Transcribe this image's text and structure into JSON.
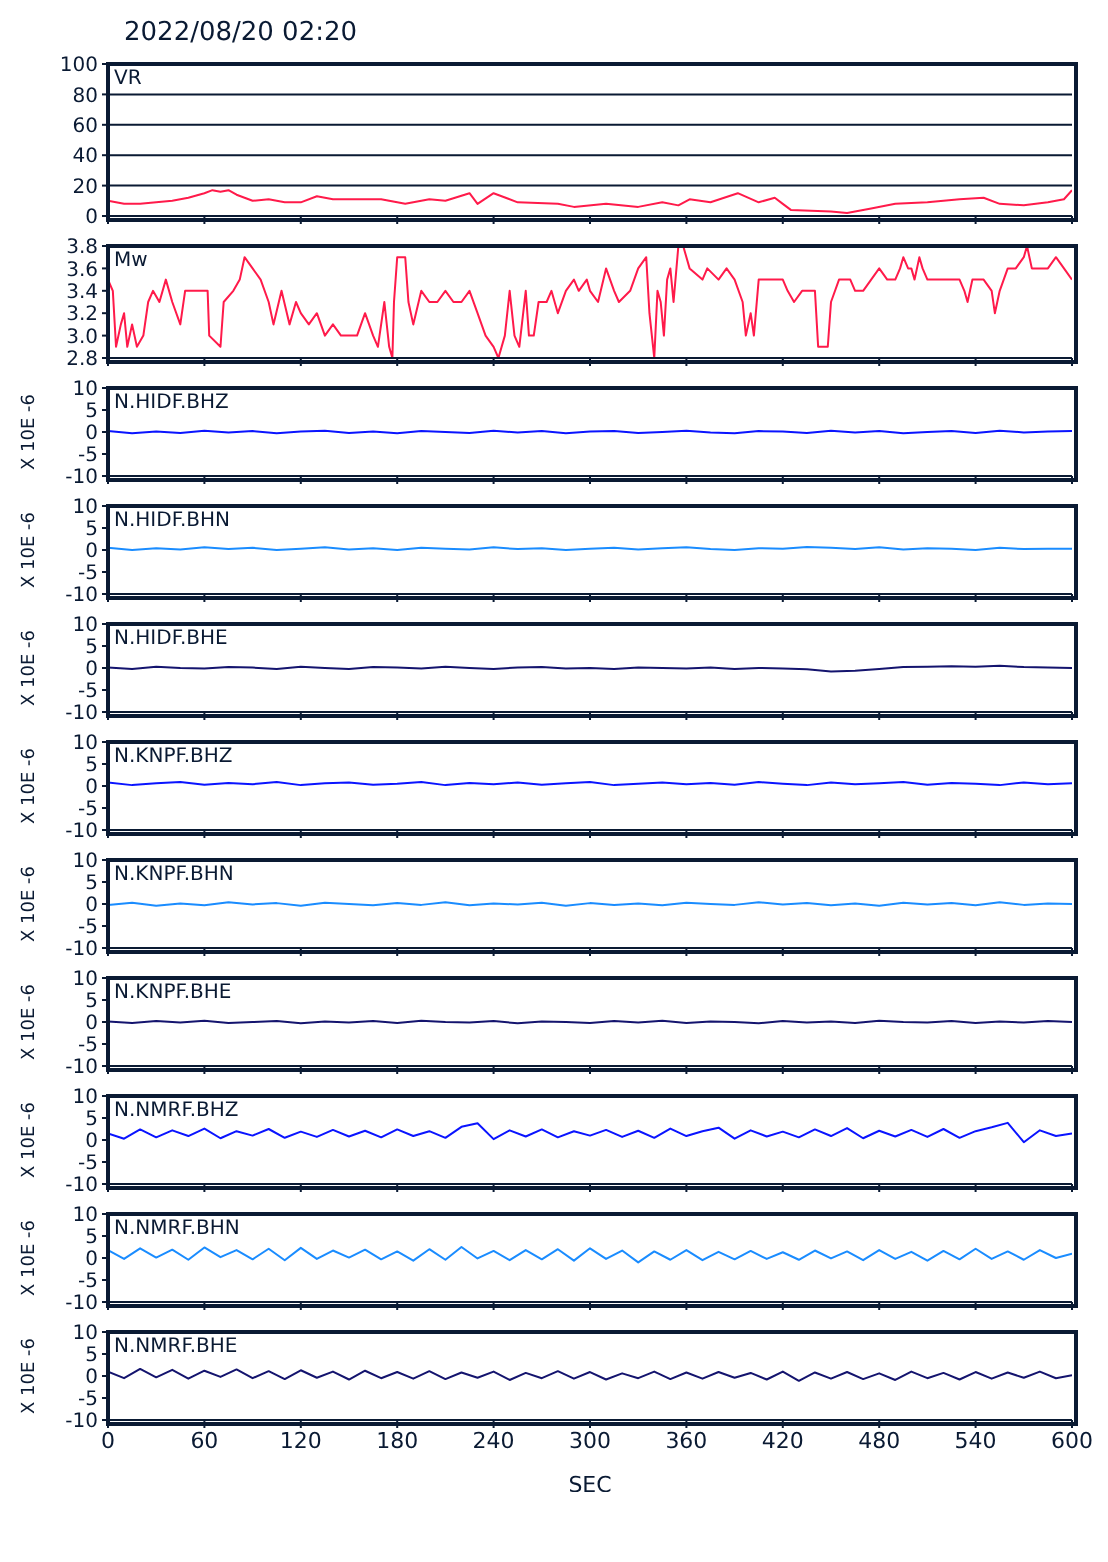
{
  "chart_data": [
    {
      "type": "line",
      "title": "2022/08/20 02:20",
      "xlim": [
        0,
        600
      ],
      "xticks": [
        0,
        60,
        120,
        180,
        240,
        300,
        360,
        420,
        480,
        540,
        600
      ],
      "ylim": [
        0,
        100
      ],
      "yticks": [
        0,
        20,
        40,
        60,
        80,
        100
      ],
      "grid": "y",
      "tick_labels": "y",
      "series": [
        {
          "name": "VR",
          "color": "#ff1a4a",
          "x": [
            0,
            5,
            10,
            20,
            30,
            40,
            50,
            60,
            65,
            70,
            75,
            80,
            90,
            100,
            110,
            120,
            130,
            140,
            150,
            170,
            180,
            185,
            200,
            210,
            225,
            230,
            240,
            255,
            280,
            290,
            310,
            330,
            345,
            355,
            362,
            375,
            392,
            405,
            415,
            420,
            425,
            450,
            460,
            475,
            490,
            510,
            530,
            545,
            555,
            570,
            585,
            595,
            600
          ],
          "values": [
            10,
            9,
            8,
            8,
            9,
            10,
            12,
            15,
            17,
            16,
            17,
            14,
            10,
            11,
            9,
            9,
            13,
            11,
            11,
            11,
            9,
            8,
            11,
            10,
            15,
            8,
            15,
            9,
            8,
            6,
            8,
            6,
            9,
            7,
            11,
            9,
            15,
            9,
            12,
            8,
            4,
            3,
            2,
            5,
            8,
            9,
            11,
            12,
            8,
            7,
            9,
            11,
            17
          ]
        }
      ]
    },
    {
      "type": "line",
      "xlim": [
        0,
        600
      ],
      "xticks": [
        0,
        60,
        120,
        180,
        240,
        300,
        360,
        420,
        480,
        540,
        600
      ],
      "ylim": [
        2.8,
        3.8
      ],
      "yticks": [
        2.8,
        {
          "value": 3,
          "label": "3.0"
        },
        3.2,
        3.4,
        3.6,
        3.8
      ],
      "tick_labels": "y",
      "series": [
        {
          "name": "Mw",
          "color": "#ff1a4a",
          "x": [
            0,
            3,
            5,
            8,
            10,
            12,
            15,
            18,
            22,
            25,
            28,
            32,
            36,
            40,
            45,
            48,
            62,
            63,
            70,
            72,
            78,
            82,
            85,
            90,
            95,
            100,
            103,
            108,
            113,
            117,
            120,
            125,
            130,
            135,
            140,
            145,
            155,
            160,
            165,
            168,
            172,
            175,
            177,
            178,
            180,
            185,
            187,
            190,
            195,
            200,
            205,
            210,
            215,
            220,
            225,
            230,
            235,
            240,
            243,
            247,
            250,
            253,
            256,
            260,
            262,
            265,
            268,
            273,
            276,
            280,
            285,
            290,
            293,
            298,
            300,
            305,
            310,
            315,
            318,
            325,
            330,
            335,
            337,
            340,
            342,
            344,
            346,
            348,
            350,
            352,
            355,
            358,
            362,
            370,
            373,
            380,
            385,
            390,
            395,
            397,
            400,
            402,
            405,
            420,
            423,
            427,
            432,
            440,
            442,
            448,
            450,
            455,
            462,
            465,
            470,
            475,
            480,
            485,
            490,
            493,
            495,
            498,
            500,
            502,
            505,
            507,
            510,
            530,
            533,
            535,
            538,
            545,
            550,
            552,
            555,
            560,
            565,
            570,
            572,
            575,
            580,
            585,
            590,
            595,
            600
          ],
          "values": [
            3.5,
            3.4,
            2.9,
            3.1,
            3.2,
            2.9,
            3.1,
            2.9,
            3.0,
            3.3,
            3.4,
            3.3,
            3.5,
            3.3,
            3.1,
            3.4,
            3.4,
            3.0,
            2.9,
            3.3,
            3.4,
            3.5,
            3.7,
            3.6,
            3.5,
            3.3,
            3.1,
            3.4,
            3.1,
            3.3,
            3.2,
            3.1,
            3.2,
            3.0,
            3.1,
            3.0,
            3.0,
            3.2,
            3.0,
            2.9,
            3.3,
            2.9,
            2.8,
            3.3,
            3.7,
            3.7,
            3.3,
            3.1,
            3.4,
            3.3,
            3.3,
            3.4,
            3.3,
            3.3,
            3.4,
            3.2,
            3.0,
            2.9,
            2.8,
            3.0,
            3.4,
            3.0,
            2.9,
            3.4,
            3.0,
            3.0,
            3.3,
            3.3,
            3.4,
            3.2,
            3.4,
            3.5,
            3.4,
            3.5,
            3.4,
            3.3,
            3.6,
            3.4,
            3.3,
            3.4,
            3.6,
            3.7,
            3.2,
            2.8,
            3.4,
            3.3,
            3.0,
            3.5,
            3.6,
            3.3,
            3.8,
            3.8,
            3.6,
            3.5,
            3.6,
            3.5,
            3.6,
            3.5,
            3.3,
            3.0,
            3.2,
            3.0,
            3.5,
            3.5,
            3.4,
            3.3,
            3.4,
            3.4,
            2.9,
            2.9,
            3.3,
            3.5,
            3.5,
            3.4,
            3.4,
            3.5,
            3.6,
            3.5,
            3.5,
            3.6,
            3.7,
            3.6,
            3.6,
            3.5,
            3.7,
            3.6,
            3.5,
            3.5,
            3.4,
            3.3,
            3.5,
            3.5,
            3.4,
            3.2,
            3.4,
            3.6,
            3.6,
            3.7,
            3.8,
            3.6,
            3.6,
            3.6,
            3.7,
            3.6,
            3.5
          ]
        }
      ]
    },
    {
      "type": "line",
      "ylabel": "X 10E -6",
      "xlim": [
        0,
        600
      ],
      "xticks": [
        0,
        60,
        120,
        180,
        240,
        300,
        360,
        420,
        480,
        540,
        600
      ],
      "ylim": [
        -10,
        10
      ],
      "yticks": [
        -10,
        -5,
        0,
        5,
        10
      ],
      "tick_labels": "y",
      "series": [
        {
          "name": "N.HIDF.BHZ",
          "color": "#0a14ff",
          "x": [
            0,
            15,
            30,
            45,
            60,
            75,
            90,
            105,
            120,
            135,
            150,
            165,
            180,
            195,
            210,
            225,
            240,
            255,
            270,
            285,
            300,
            315,
            330,
            345,
            360,
            375,
            390,
            405,
            420,
            435,
            450,
            465,
            480,
            495,
            510,
            525,
            540,
            555,
            570,
            585,
            600
          ],
          "values": [
            0.2,
            -0.3,
            0.1,
            -0.2,
            0.3,
            -0.1,
            0.2,
            -0.3,
            0.1,
            0.3,
            -0.2,
            0.1,
            -0.3,
            0.2,
            0,
            -0.2,
            0.3,
            -0.1,
            0.2,
            -0.3,
            0.1,
            0.2,
            -0.2,
            0,
            0.3,
            -0.1,
            -0.3,
            0.2,
            0.1,
            -0.2,
            0.3,
            -0.1,
            0.2,
            -0.3,
            0,
            0.2,
            -0.2,
            0.3,
            -0.1,
            0.1,
            0.2
          ]
        }
      ]
    },
    {
      "type": "line",
      "ylabel": "X 10E -6",
      "xlim": [
        0,
        600
      ],
      "xticks": [
        0,
        60,
        120,
        180,
        240,
        300,
        360,
        420,
        480,
        540,
        600
      ],
      "ylim": [
        -10,
        10
      ],
      "yticks": [
        -10,
        -5,
        0,
        5,
        10
      ],
      "tick_labels": "y",
      "series": [
        {
          "name": "N.HIDF.BHN",
          "color": "#1a8cff",
          "x": [
            0,
            15,
            30,
            45,
            60,
            75,
            90,
            105,
            120,
            135,
            150,
            165,
            180,
            195,
            210,
            225,
            240,
            255,
            270,
            285,
            300,
            315,
            330,
            345,
            360,
            375,
            390,
            405,
            420,
            435,
            450,
            465,
            480,
            495,
            510,
            525,
            540,
            555,
            570,
            585,
            600
          ],
          "values": [
            0.5,
            0,
            0.4,
            0.1,
            0.6,
            0.2,
            0.5,
            0,
            0.3,
            0.6,
            0.1,
            0.4,
            0,
            0.5,
            0.3,
            0.1,
            0.6,
            0.2,
            0.4,
            0,
            0.3,
            0.5,
            0.1,
            0.4,
            0.6,
            0.2,
            0,
            0.4,
            0.3,
            0.7,
            0.5,
            0.2,
            0.6,
            0.1,
            0.4,
            0.3,
            0,
            0.5,
            0.2,
            0.3,
            0.3
          ]
        }
      ]
    },
    {
      "type": "line",
      "ylabel": "X 10E -6",
      "xlim": [
        0,
        600
      ],
      "xticks": [
        0,
        60,
        120,
        180,
        240,
        300,
        360,
        420,
        480,
        540,
        600
      ],
      "ylim": [
        -10,
        10
      ],
      "yticks": [
        -10,
        -5,
        0,
        5,
        10
      ],
      "tick_labels": "y",
      "series": [
        {
          "name": "N.HIDF.BHE",
          "color": "#14146e",
          "x": [
            0,
            15,
            30,
            45,
            60,
            75,
            90,
            105,
            120,
            135,
            150,
            165,
            180,
            195,
            210,
            225,
            240,
            255,
            270,
            285,
            300,
            315,
            330,
            345,
            360,
            375,
            390,
            405,
            420,
            435,
            450,
            465,
            480,
            495,
            510,
            525,
            540,
            555,
            570,
            585,
            600
          ],
          "values": [
            0.1,
            -0.2,
            0.3,
            0,
            -0.1,
            0.2,
            0.1,
            -0.2,
            0.3,
            0,
            -0.2,
            0.2,
            0.1,
            -0.1,
            0.3,
            0,
            -0.2,
            0.1,
            0.2,
            -0.1,
            0,
            -0.2,
            0.1,
            0,
            -0.1,
            0.1,
            -0.2,
            0,
            -0.1,
            -0.3,
            -0.8,
            -0.6,
            -0.2,
            0.2,
            0.3,
            0.4,
            0.3,
            0.5,
            0.2,
            0.1,
            0
          ]
        }
      ]
    },
    {
      "type": "line",
      "ylabel": "X 10E -6",
      "xlim": [
        0,
        600
      ],
      "xticks": [
        0,
        60,
        120,
        180,
        240,
        300,
        360,
        420,
        480,
        540,
        600
      ],
      "ylim": [
        -10,
        10
      ],
      "yticks": [
        -10,
        -5,
        0,
        5,
        10
      ],
      "tick_labels": "y",
      "series": [
        {
          "name": "N.KNPF.BHZ",
          "color": "#0a14ff",
          "x": [
            0,
            15,
            30,
            45,
            60,
            75,
            90,
            105,
            120,
            135,
            150,
            165,
            180,
            195,
            210,
            225,
            240,
            255,
            270,
            285,
            300,
            315,
            330,
            345,
            360,
            375,
            390,
            405,
            420,
            435,
            450,
            465,
            480,
            495,
            510,
            525,
            540,
            555,
            570,
            585,
            600
          ],
          "values": [
            0.8,
            0.2,
            0.6,
            0.9,
            0.3,
            0.7,
            0.4,
            0.9,
            0.2,
            0.6,
            0.8,
            0.3,
            0.5,
            0.9,
            0.2,
            0.7,
            0.4,
            0.8,
            0.3,
            0.6,
            0.9,
            0.2,
            0.5,
            0.8,
            0.4,
            0.7,
            0.3,
            0.9,
            0.5,
            0.2,
            0.8,
            0.4,
            0.6,
            0.9,
            0.3,
            0.7,
            0.5,
            0.2,
            0.8,
            0.4,
            0.6
          ]
        }
      ]
    },
    {
      "type": "line",
      "ylabel": "X 10E -6",
      "xlim": [
        0,
        600
      ],
      "xticks": [
        0,
        60,
        120,
        180,
        240,
        300,
        360,
        420,
        480,
        540,
        600
      ],
      "ylim": [
        -10,
        10
      ],
      "yticks": [
        -10,
        -5,
        0,
        5,
        10
      ],
      "tick_labels": "y",
      "series": [
        {
          "name": "N.KNPF.BHN",
          "color": "#1a8cff",
          "x": [
            0,
            15,
            30,
            45,
            60,
            75,
            90,
            105,
            120,
            135,
            150,
            165,
            180,
            195,
            210,
            225,
            240,
            255,
            270,
            285,
            300,
            315,
            330,
            345,
            360,
            375,
            390,
            405,
            420,
            435,
            450,
            465,
            480,
            495,
            510,
            525,
            540,
            555,
            570,
            585,
            600
          ],
          "values": [
            -0.2,
            0.3,
            -0.4,
            0.1,
            -0.3,
            0.4,
            -0.1,
            0.2,
            -0.4,
            0.3,
            0,
            -0.3,
            0.2,
            -0.2,
            0.4,
            -0.3,
            0.1,
            -0.1,
            0.3,
            -0.4,
            0.2,
            -0.2,
            0.1,
            -0.3,
            0.3,
            0,
            -0.2,
            0.4,
            -0.1,
            0.2,
            -0.3,
            0.1,
            -0.4,
            0.3,
            -0.1,
            0.2,
            -0.3,
            0.4,
            -0.2,
            0.1,
            0
          ]
        }
      ]
    },
    {
      "type": "line",
      "ylabel": "X 10E -6",
      "xlim": [
        0,
        600
      ],
      "xticks": [
        0,
        60,
        120,
        180,
        240,
        300,
        360,
        420,
        480,
        540,
        600
      ],
      "ylim": [
        -10,
        10
      ],
      "yticks": [
        -10,
        -5,
        0,
        5,
        10
      ],
      "tick_labels": "y",
      "series": [
        {
          "name": "N.KNPF.BHE",
          "color": "#14146e",
          "x": [
            0,
            15,
            30,
            45,
            60,
            75,
            90,
            105,
            120,
            135,
            150,
            165,
            180,
            195,
            210,
            225,
            240,
            255,
            270,
            285,
            300,
            315,
            330,
            345,
            360,
            375,
            390,
            405,
            420,
            435,
            450,
            465,
            480,
            495,
            510,
            525,
            540,
            555,
            570,
            585,
            600
          ],
          "values": [
            0.1,
            -0.2,
            0.2,
            -0.1,
            0.3,
            -0.2,
            0,
            0.2,
            -0.3,
            0.1,
            -0.1,
            0.2,
            -0.2,
            0.3,
            0,
            -0.1,
            0.2,
            -0.3,
            0.1,
            0,
            -0.2,
            0.2,
            -0.1,
            0.3,
            -0.2,
            0.1,
            0,
            -0.3,
            0.2,
            -0.1,
            0.1,
            -0.2,
            0.3,
            0,
            -0.1,
            0.2,
            -0.2,
            0.1,
            -0.1,
            0.2,
            0
          ]
        }
      ]
    },
    {
      "type": "line",
      "ylabel": "X 10E -6",
      "xlim": [
        0,
        600
      ],
      "xticks": [
        0,
        60,
        120,
        180,
        240,
        300,
        360,
        420,
        480,
        540,
        600
      ],
      "ylim": [
        -10,
        10
      ],
      "yticks": [
        -10,
        -5,
        0,
        5,
        10
      ],
      "tick_labels": "y",
      "series": [
        {
          "name": "N.NMRF.BHZ",
          "color": "#0a14ff",
          "x": [
            0,
            10,
            20,
            30,
            40,
            50,
            60,
            70,
            80,
            90,
            100,
            110,
            120,
            130,
            140,
            150,
            160,
            170,
            180,
            190,
            200,
            210,
            220,
            230,
            240,
            250,
            260,
            270,
            280,
            290,
            300,
            310,
            320,
            330,
            340,
            350,
            360,
            370,
            380,
            390,
            400,
            410,
            420,
            430,
            440,
            450,
            460,
            470,
            480,
            490,
            500,
            510,
            520,
            530,
            540,
            550,
            560,
            570,
            580,
            590,
            600
          ],
          "values": [
            1.5,
            0.3,
            2.4,
            0.6,
            2.2,
            0.9,
            2.6,
            0.4,
            2.0,
            1.0,
            2.5,
            0.5,
            1.9,
            0.7,
            2.3,
            0.8,
            2.1,
            0.6,
            2.4,
            0.9,
            2.0,
            0.5,
            3.0,
            3.8,
            0.2,
            2.2,
            0.8,
            2.4,
            0.6,
            2.0,
            1.0,
            2.3,
            0.7,
            2.1,
            0.5,
            2.6,
            0.9,
            2.0,
            2.8,
            0.3,
            2.2,
            0.8,
            1.9,
            0.6,
            2.4,
            0.9,
            2.7,
            0.4,
            2.1,
            0.8,
            2.3,
            0.7,
            2.5,
            0.5,
            2.0,
            2.9,
            3.9,
            -0.5,
            2.2,
            0.9,
            1.5
          ]
        }
      ]
    },
    {
      "type": "line",
      "ylabel": "X 10E -6",
      "xlim": [
        0,
        600
      ],
      "xticks": [
        0,
        60,
        120,
        180,
        240,
        300,
        360,
        420,
        480,
        540,
        600
      ],
      "ylim": [
        -10,
        10
      ],
      "yticks": [
        -10,
        -5,
        0,
        5,
        10
      ],
      "tick_labels": "y",
      "series": [
        {
          "name": "N.NMRF.BHN",
          "color": "#1a8cff",
          "x": [
            0,
            10,
            20,
            30,
            40,
            50,
            60,
            70,
            80,
            90,
            100,
            110,
            120,
            130,
            140,
            150,
            160,
            170,
            180,
            190,
            200,
            210,
            220,
            230,
            240,
            250,
            260,
            270,
            280,
            290,
            300,
            310,
            320,
            330,
            340,
            350,
            360,
            370,
            380,
            390,
            400,
            410,
            420,
            430,
            440,
            450,
            460,
            470,
            480,
            490,
            500,
            510,
            520,
            530,
            540,
            550,
            560,
            570,
            580,
            590,
            600
          ],
          "values": [
            1.8,
            -0.2,
            2.2,
            0.1,
            1.9,
            -0.4,
            2.4,
            0.2,
            1.8,
            -0.3,
            2.1,
            -0.5,
            2.3,
            -0.2,
            1.7,
            0.1,
            1.9,
            -0.3,
            1.5,
            -0.6,
            2.0,
            -0.4,
            2.5,
            -0.1,
            1.6,
            -0.5,
            1.8,
            -0.3,
            2.0,
            -0.6,
            2.2,
            -0.2,
            1.7,
            -1.0,
            1.5,
            -0.4,
            1.8,
            -0.5,
            1.4,
            -0.3,
            1.6,
            -0.2,
            1.3,
            -0.4,
            1.7,
            -0.1,
            1.5,
            -0.5,
            1.8,
            -0.2,
            1.4,
            -0.6,
            1.6,
            -0.3,
            2.1,
            -0.2,
            1.5,
            -0.4,
            1.8,
            0.0,
            1.0
          ]
        }
      ]
    },
    {
      "type": "line",
      "ylabel": "X 10E -6",
      "xlabel": "SEC",
      "xlim": [
        0,
        600
      ],
      "xticks": [
        0,
        60,
        120,
        180,
        240,
        300,
        360,
        420,
        480,
        540,
        600
      ],
      "ylim": [
        -10,
        10
      ],
      "yticks": [
        -10,
        -5,
        0,
        5,
        10
      ],
      "series": [
        {
          "name": "N.NMRF.BHE",
          "color": "#14146e",
          "x": [
            0,
            10,
            20,
            30,
            40,
            50,
            60,
            70,
            80,
            90,
            100,
            110,
            120,
            130,
            140,
            150,
            160,
            170,
            180,
            190,
            200,
            210,
            220,
            230,
            240,
            250,
            260,
            270,
            280,
            290,
            300,
            310,
            320,
            330,
            340,
            350,
            360,
            370,
            380,
            390,
            400,
            410,
            420,
            430,
            440,
            450,
            460,
            470,
            480,
            490,
            500,
            510,
            520,
            530,
            540,
            550,
            560,
            570,
            580,
            590,
            600
          ],
          "values": [
            1.0,
            -0.5,
            1.6,
            -0.3,
            1.4,
            -0.6,
            1.2,
            -0.2,
            1.5,
            -0.5,
            1.1,
            -0.7,
            1.3,
            -0.4,
            1.0,
            -0.8,
            1.2,
            -0.5,
            0.9,
            -0.6,
            1.1,
            -0.7,
            0.8,
            -0.4,
            1.0,
            -0.9,
            0.7,
            -0.5,
            1.1,
            -0.6,
            0.9,
            -0.8,
            0.6,
            -0.5,
            1.0,
            -0.7,
            0.8,
            -0.6,
            0.9,
            -0.4,
            0.7,
            -0.8,
            1.0,
            -1.1,
            0.8,
            -0.6,
            0.9,
            -0.7,
            0.6,
            -0.9,
            1.0,
            -0.5,
            0.7,
            -0.8,
            0.9,
            -0.6,
            0.8,
            -0.4,
            1.0,
            -0.5,
            0.2
          ]
        }
      ]
    }
  ]
}
